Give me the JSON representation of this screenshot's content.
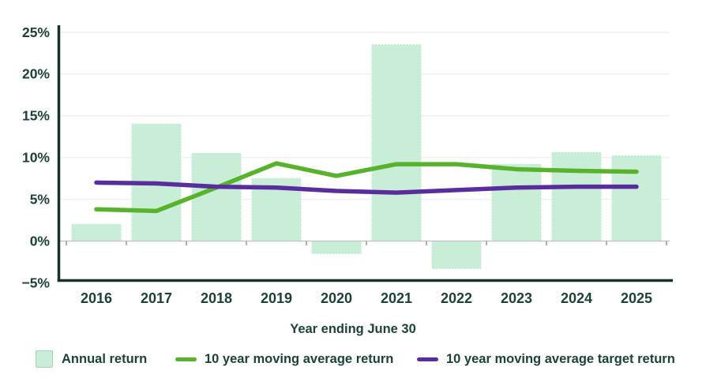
{
  "chart_data": {
    "type": "combo-bar-line",
    "title": "",
    "xlabel": "Year ending June 30",
    "ylabel": "",
    "categories": [
      "2016",
      "2017",
      "2018",
      "2019",
      "2020",
      "2021",
      "2022",
      "2023",
      "2024",
      "2025"
    ],
    "bar_series": {
      "name": "Annual return",
      "color": "#c9eed8",
      "values": [
        2,
        14,
        10.5,
        7.5,
        -1.5,
        23.5,
        -3.3,
        9.2,
        10.6,
        10.2
      ]
    },
    "line_series": [
      {
        "name": "10 year moving average return",
        "color": "#57b32b",
        "values": [
          3.8,
          3.6,
          6.4,
          9.3,
          7.8,
          9.2,
          9.2,
          8.6,
          8.4,
          8.3
        ]
      },
      {
        "name": "10 year moving average target return",
        "color": "#5a2d9e",
        "values": [
          7.0,
          6.9,
          6.5,
          6.4,
          6.0,
          5.8,
          6.1,
          6.4,
          6.5,
          6.5
        ]
      }
    ],
    "ylim": [
      -5,
      25
    ],
    "y_ticks": [
      {
        "value": 25,
        "label": "25%"
      },
      {
        "value": 20,
        "label": "20%"
      },
      {
        "value": 15,
        "label": "15%"
      },
      {
        "value": 10,
        "label": "10%"
      },
      {
        "value": 5,
        "label": "5%"
      },
      {
        "value": 0,
        "label": "0%"
      },
      {
        "value": -5,
        "label": "−5%"
      }
    ],
    "grid": "horizontal",
    "legend_position": "bottom",
    "colors": {
      "axis": "#15352c",
      "text": "#1c4237",
      "gridline": "#f1f1f1",
      "zero_line": "#c7c7c7",
      "tick": "#9b9b9b",
      "bar_border": "#bfe7cf"
    }
  }
}
